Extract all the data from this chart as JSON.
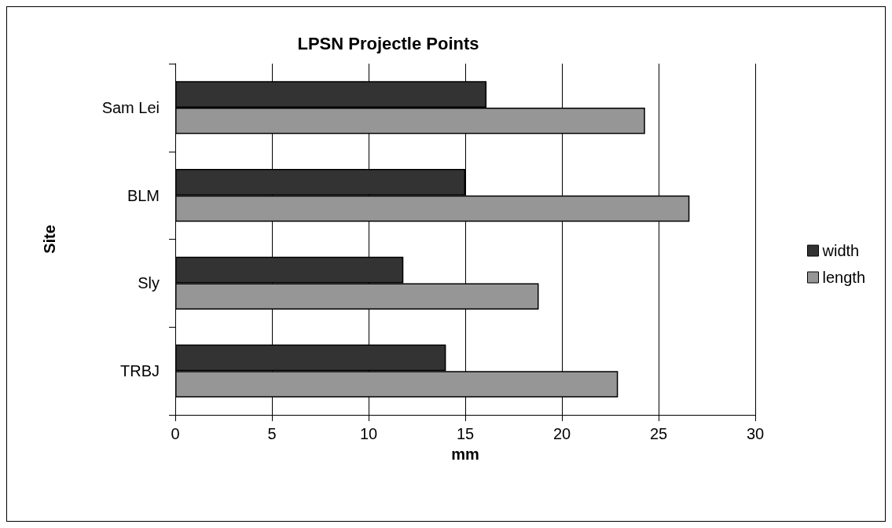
{
  "chart_data": {
    "type": "bar",
    "orientation": "horizontal",
    "title": "LPSN Projectle Points",
    "xlabel": "mm",
    "ylabel": "Site",
    "categories": [
      "Sam Lei",
      "BLM",
      "Sly",
      "TRBJ"
    ],
    "series": [
      {
        "name": "width",
        "color": "#333333",
        "values": [
          16.1,
          15.0,
          11.8,
          14.0
        ]
      },
      {
        "name": "length",
        "color": "#969696",
        "values": [
          24.3,
          26.6,
          18.8,
          22.9
        ]
      }
    ],
    "xlim": [
      0,
      30
    ],
    "xticks": [
      0,
      5,
      10,
      15,
      20,
      25,
      30
    ],
    "grid": "x",
    "legend": "right"
  }
}
